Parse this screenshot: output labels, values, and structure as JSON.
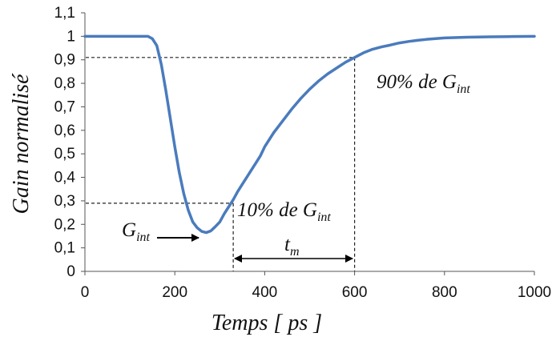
{
  "chart_data": {
    "type": "line",
    "title": "",
    "xlabel": "Temps [ ps ]",
    "ylabel": "Gain normalisé",
    "xlim": [
      0,
      1000
    ],
    "ylim": [
      0,
      1.1
    ],
    "grid": false,
    "x_ticks": [
      "0",
      "200",
      "400",
      "600",
      "800",
      "1000"
    ],
    "y_ticks": [
      "0",
      "0,1",
      "0,2",
      "0,3",
      "0,4",
      "0,5",
      "0,6",
      "0,7",
      "0,8",
      "0,9",
      "1",
      "1,1"
    ],
    "series": [
      {
        "color": "#4a7bbd",
        "x": [
          0,
          100,
          140,
          150,
          160,
          170,
          180,
          190,
          200,
          210,
          220,
          230,
          240,
          250,
          260,
          270,
          280,
          290,
          300,
          310,
          320,
          330,
          340,
          350,
          360,
          370,
          380,
          390,
          400,
          420,
          440,
          460,
          480,
          500,
          520,
          540,
          560,
          580,
          600,
          620,
          640,
          660,
          680,
          700,
          720,
          740,
          760,
          780,
          800,
          850,
          900,
          950,
          1000
        ],
        "y": [
          1.0,
          1.0,
          1.0,
          0.99,
          0.96,
          0.88,
          0.77,
          0.65,
          0.53,
          0.42,
          0.33,
          0.26,
          0.21,
          0.185,
          0.17,
          0.165,
          0.172,
          0.19,
          0.21,
          0.245,
          0.275,
          0.305,
          0.34,
          0.37,
          0.4,
          0.43,
          0.46,
          0.49,
          0.53,
          0.59,
          0.64,
          0.69,
          0.735,
          0.775,
          0.81,
          0.84,
          0.865,
          0.89,
          0.91,
          0.93,
          0.945,
          0.955,
          0.963,
          0.972,
          0.978,
          0.983,
          0.987,
          0.99,
          0.993,
          0.996,
          0.998,
          0.999,
          1.0
        ]
      }
    ],
    "reference_lines": [
      {
        "from": [
          0,
          0.91
        ],
        "to": [
          600,
          0.91
        ],
        "drop_to_x_axis": true
      },
      {
        "from": [
          0,
          0.29
        ],
        "to": [
          330,
          0.29
        ],
        "drop_to_x_axis": true
      }
    ],
    "annotations": [
      {
        "main": "90% de G",
        "sub": "int"
      },
      {
        "main": "10% de G",
        "sub": "int"
      },
      {
        "main": "G",
        "sub": "int"
      },
      {
        "main": "t",
        "sub": "m"
      }
    ]
  }
}
